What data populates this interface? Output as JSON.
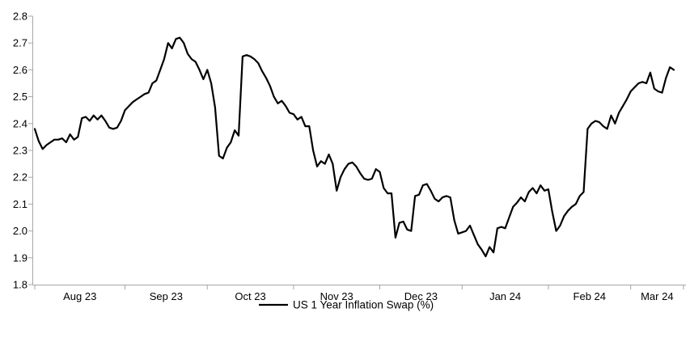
{
  "chart_data": {
    "type": "line",
    "title": "",
    "legend": [
      "US 1 Year Inflation Swap (%)"
    ],
    "legend_position": "bottom-center",
    "xlabel": "",
    "ylabel": "",
    "ylim": [
      1.8,
      2.8
    ],
    "grid": false,
    "y_tick_labels": [
      "2.8",
      "2.7",
      "2.6",
      "2.5",
      "2.4",
      "2.3",
      "2.2",
      "2.1",
      "2.0",
      "1.9",
      "1.8"
    ],
    "x_tick_labels": [
      "Aug 23",
      "Sep 23",
      "Oct 23",
      "Nov 23",
      "Dec 23",
      "Jan 24",
      "Feb 24",
      "Mar 24"
    ],
    "month_start_indices": [
      0,
      23,
      44,
      66,
      88,
      109,
      131,
      152
    ],
    "series": [
      {
        "name": "US 1 Year Inflation Swap (%)",
        "color": "#000000",
        "values": [
          2.38,
          2.335,
          2.305,
          2.32,
          2.33,
          2.34,
          2.34,
          2.345,
          2.33,
          2.36,
          2.34,
          2.35,
          2.42,
          2.425,
          2.41,
          2.43,
          2.415,
          2.43,
          2.41,
          2.385,
          2.38,
          2.385,
          2.41,
          2.45,
          2.465,
          2.48,
          2.49,
          2.5,
          2.51,
          2.515,
          2.55,
          2.56,
          2.6,
          2.64,
          2.7,
          2.68,
          2.715,
          2.72,
          2.7,
          2.66,
          2.64,
          2.63,
          2.6,
          2.565,
          2.6,
          2.55,
          2.46,
          2.28,
          2.27,
          2.31,
          2.33,
          2.375,
          2.355,
          2.65,
          2.655,
          2.65,
          2.64,
          2.625,
          2.595,
          2.57,
          2.54,
          2.5,
          2.475,
          2.485,
          2.465,
          2.44,
          2.435,
          2.415,
          2.425,
          2.39,
          2.39,
          2.3,
          2.24,
          2.26,
          2.25,
          2.285,
          2.25,
          2.15,
          2.2,
          2.23,
          2.25,
          2.255,
          2.24,
          2.215,
          2.195,
          2.19,
          2.195,
          2.23,
          2.22,
          2.16,
          2.14,
          2.14,
          1.975,
          2.03,
          2.035,
          2.005,
          2.0,
          2.13,
          2.135,
          2.17,
          2.175,
          2.15,
          2.12,
          2.11,
          2.125,
          2.13,
          2.125,
          2.04,
          1.99,
          1.995,
          2.0,
          2.02,
          1.985,
          1.95,
          1.93,
          1.905,
          1.94,
          1.92,
          2.01,
          2.015,
          2.01,
          2.05,
          2.09,
          2.105,
          2.125,
          2.11,
          2.145,
          2.16,
          2.14,
          2.17,
          2.15,
          2.155,
          2.07,
          2.0,
          2.02,
          2.055,
          2.075,
          2.09,
          2.1,
          2.13,
          2.145,
          2.38,
          2.4,
          2.41,
          2.405,
          2.39,
          2.38,
          2.43,
          2.4,
          2.44,
          2.465,
          2.49,
          2.52,
          2.535,
          2.55,
          2.555,
          2.55,
          2.59,
          2.53,
          2.52,
          2.515,
          2.57,
          2.61,
          2.6
        ]
      }
    ]
  },
  "styles": {
    "background": "#ffffff",
    "axis_color": "#a6a6a6",
    "tick_color": "#a6a6a6",
    "text_color": "#000000",
    "series_color": "#000000"
  }
}
